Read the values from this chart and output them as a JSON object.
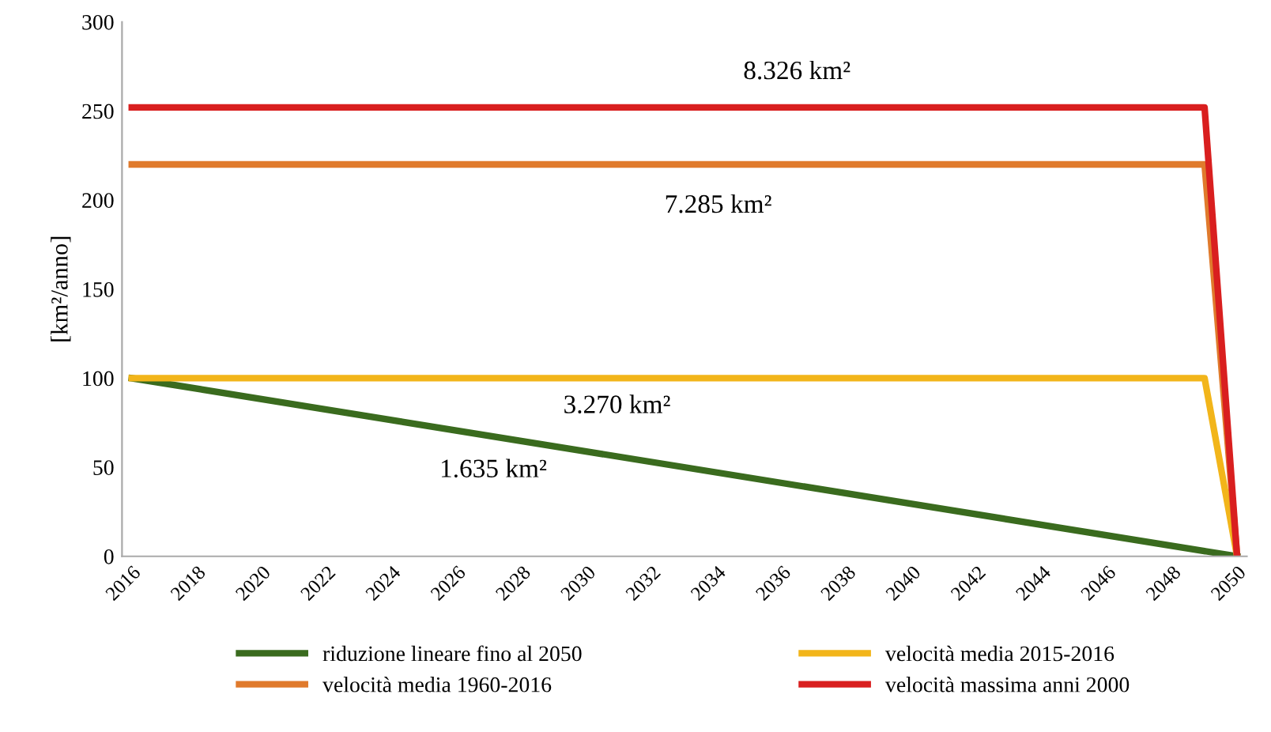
{
  "chart_data": {
    "type": "line",
    "ylabel": "[km²/anno]",
    "series": [
      {
        "name": "riduzione lineare fino al 2050",
        "color": "#3a6b1e",
        "x": [
          2016,
          2050
        ],
        "values": [
          100,
          0
        ]
      },
      {
        "name": "velocità media 2015-2016",
        "color": "#f2b51a",
        "x": [
          2016,
          2049,
          2050
        ],
        "values": [
          100,
          100,
          0
        ]
      },
      {
        "name": "velocità media 1960-2016",
        "color": "#e07a2c",
        "x": [
          2016,
          2049,
          2050
        ],
        "values": [
          220,
          220,
          0
        ]
      },
      {
        "name": "velocità massima anni 2000",
        "color": "#d91f1f",
        "x": [
          2016,
          2049,
          2050
        ],
        "values": [
          252,
          252,
          0
        ]
      }
    ],
    "annotations": [
      "1.635 km²",
      "3.270 km²",
      "7.285 km²",
      "8.326 km²"
    ],
    "xlim": [
      2015.7,
      2050.3
    ],
    "xticks": [
      2016,
      2018,
      2020,
      2022,
      2024,
      2026,
      2028,
      2030,
      2032,
      2034,
      2036,
      2038,
      2040,
      2042,
      2044,
      2046,
      2048,
      2050
    ],
    "ylim": [
      0,
      300
    ],
    "yticks": [
      0,
      50,
      100,
      150,
      200,
      250,
      300
    ],
    "grid": false,
    "legend": "bottom",
    "marker": "none",
    "line_style": "solid"
  }
}
